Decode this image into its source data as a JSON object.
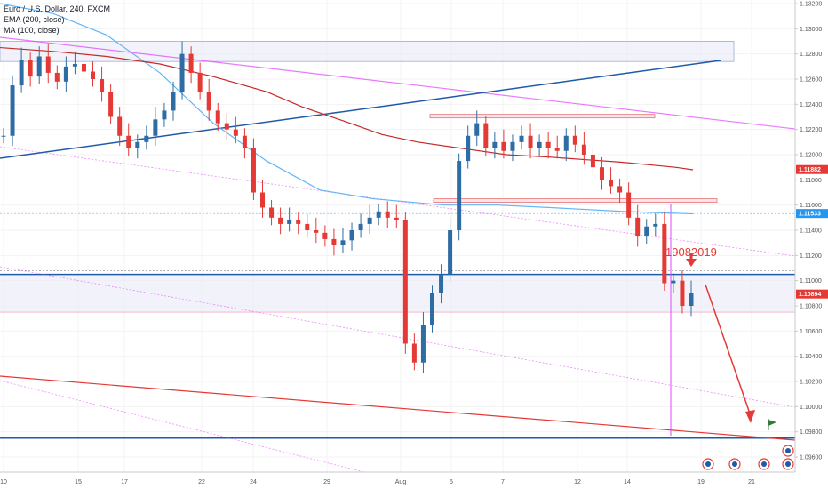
{
  "legend": {
    "symbol": "Euro / U.S. Dollar, 240, FXCM",
    "ema": "EMA (200, close)",
    "ma": "MA (100, close)"
  },
  "annotation": {
    "date_label": "19082019"
  },
  "chart_data": {
    "type": "candlestick",
    "title": "Euro / U.S. Dollar, 240, FXCM",
    "xlabel": "",
    "ylabel": "",
    "ylim": [
      1.0945,
      1.1325
    ],
    "x_ticks": [
      "10",
      "15",
      "17",
      "22",
      "24",
      "29",
      "Aug",
      "5",
      "7",
      "12",
      "14",
      "19",
      "21"
    ],
    "y_ticks": [
      "1.13200",
      "1.13000",
      "1.12800",
      "1.12600",
      "1.12400",
      "1.12200",
      "1.12000",
      "1.11800",
      "1.11600",
      "1.11400",
      "1.11200",
      "1.11000",
      "1.10800",
      "1.10600",
      "1.10400",
      "1.10200",
      "1.10000",
      "1.09800",
      "1.09600"
    ],
    "price_badges": [
      {
        "label": "1.11882",
        "value": 1.11882,
        "color": "#e53935"
      },
      {
        "label": "1.11533",
        "value": 1.11533,
        "color": "#2196f3"
      },
      {
        "label": "1.10894",
        "value": 1.10894,
        "color": "#e53935"
      }
    ],
    "series": [
      {
        "name": "EUR/USD close",
        "values": [
          1.1215,
          1.1255,
          1.1275,
          1.1262,
          1.1278,
          1.1265,
          1.1258,
          1.127,
          1.1272,
          1.1266,
          1.126,
          1.125,
          1.123,
          1.1215,
          1.1205,
          1.121,
          1.1215,
          1.1228,
          1.1235,
          1.125,
          1.128,
          1.1265,
          1.125,
          1.1235,
          1.1225,
          1.122,
          1.1215,
          1.1205,
          1.117,
          1.1158,
          1.115,
          1.1145,
          1.1148,
          1.1145,
          1.114,
          1.1138,
          1.1133,
          1.1128,
          1.1132,
          1.114,
          1.1145,
          1.115,
          1.1155,
          1.115,
          1.1148,
          1.105,
          1.1035,
          1.1065,
          1.109,
          1.1105,
          1.114,
          1.1195,
          1.1215,
          1.1225,
          1.1205,
          1.121,
          1.1203,
          1.121,
          1.1215,
          1.1205,
          1.121,
          1.1205,
          1.1203,
          1.1215,
          1.1208,
          1.12,
          1.119,
          1.118,
          1.1175,
          1.117,
          1.115,
          1.1135,
          1.1143,
          1.1145,
          1.1098,
          1.11,
          1.108,
          1.109
        ]
      },
      {
        "name": "EMA (200, close)",
        "values": [
          1.1285,
          1.1282,
          1.1278,
          1.1272,
          1.1262,
          1.125,
          1.1238,
          1.1226,
          1.1216,
          1.121,
          1.1205,
          1.12,
          1.1198,
          1.1196,
          1.1194,
          1.1192,
          1.119,
          1.1188
        ]
      },
      {
        "name": "MA (100, close)",
        "values": [
          1.132,
          1.1312,
          1.1295,
          1.1265,
          1.1225,
          1.1195,
          1.1172,
          1.1165,
          1.116,
          1.116,
          1.1158,
          1.1155,
          1.1153
        ]
      }
    ],
    "levels": [
      {
        "name": "support-zone",
        "top": 1.1105,
        "bottom": 1.1075
      },
      {
        "name": "target-line",
        "value": 1.0975
      },
      {
        "name": "resistance-zone-top",
        "top": 1.129,
        "bottom": 1.1274
      },
      {
        "name": "resistance-zone-mid",
        "top": 1.123,
        "bottom": 1.1228
      },
      {
        "name": "resistance-zone-low",
        "top": 1.1163,
        "bottom": 1.116
      }
    ]
  }
}
